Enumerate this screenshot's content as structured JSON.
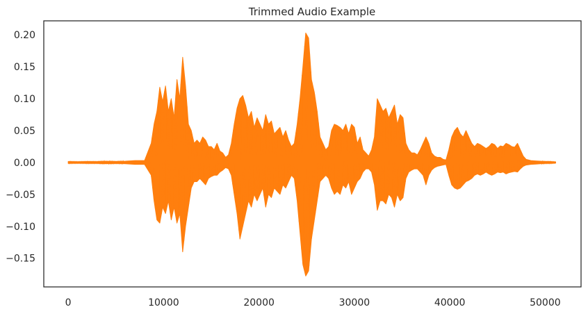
{
  "chart_data": {
    "type": "line",
    "title": "Trimmed Audio Example",
    "xlabel": "",
    "ylabel": "",
    "xlim": [
      -2560,
      53760
    ],
    "ylim": [
      -0.195,
      0.222
    ],
    "x_ticks": [
      0,
      10000,
      20000,
      30000,
      40000,
      50000
    ],
    "x_tick_labels": [
      "0",
      "10000",
      "20000",
      "30000",
      "40000",
      "50000"
    ],
    "y_ticks": [
      -0.15,
      -0.1,
      -0.05,
      0.0,
      0.05,
      0.1,
      0.15,
      0.2
    ],
    "y_tick_labels": [
      "−0.15",
      "−0.10",
      "−0.05",
      "0.00",
      "0.05",
      "0.10",
      "0.15",
      "0.20"
    ],
    "grid": false,
    "legend": "none",
    "series": [
      {
        "color": "#ff7f0e",
        "representation": "min-max envelope per sample window",
        "x": [
          0,
          1000,
          2000,
          3000,
          4000,
          5000,
          6000,
          7000,
          8000,
          8700,
          9000,
          9300,
          9600,
          9900,
          10200,
          10500,
          10800,
          11100,
          11400,
          11700,
          12000,
          12300,
          12600,
          12900,
          13200,
          13500,
          13800,
          14100,
          14400,
          14700,
          15000,
          15300,
          15600,
          15900,
          16200,
          16500,
          16800,
          17100,
          17400,
          17700,
          18000,
          18300,
          18600,
          18900,
          19200,
          19500,
          19800,
          20100,
          20400,
          20700,
          21000,
          21300,
          21600,
          21900,
          22200,
          22500,
          22800,
          23100,
          23400,
          23700,
          24000,
          24300,
          24600,
          24900,
          25200,
          25500,
          25800,
          26100,
          26400,
          26700,
          27000,
          27300,
          27600,
          27900,
          28200,
          28500,
          28800,
          29100,
          29400,
          29700,
          30000,
          30300,
          30600,
          30900,
          31200,
          31500,
          31800,
          32100,
          32400,
          32700,
          33000,
          33300,
          33600,
          33900,
          34200,
          34500,
          34800,
          35100,
          35400,
          35700,
          36000,
          36300,
          36600,
          36900,
          37200,
          37500,
          37800,
          38100,
          38400,
          38700,
          39000,
          39300,
          39600,
          39900,
          40200,
          40500,
          40800,
          41100,
          41400,
          41700,
          42000,
          42300,
          42600,
          42900,
          43200,
          43500,
          43800,
          44100,
          44400,
          44700,
          45000,
          45300,
          45600,
          45900,
          46200,
          46500,
          46800,
          47100,
          47400,
          47700,
          48000,
          48500,
          49000,
          49500,
          50000,
          50500,
          51100
        ],
        "y_max": [
          0.0015,
          0.0012,
          0.0015,
          0.0014,
          0.002,
          0.0015,
          0.002,
          0.003,
          0.003,
          0.03,
          0.06,
          0.08,
          0.118,
          0.095,
          0.12,
          0.08,
          0.1,
          0.07,
          0.13,
          0.1,
          0.165,
          0.12,
          0.06,
          0.05,
          0.03,
          0.035,
          0.03,
          0.04,
          0.035,
          0.025,
          0.025,
          0.02,
          0.03,
          0.018,
          0.015,
          0.008,
          0.012,
          0.03,
          0.06,
          0.085,
          0.1,
          0.105,
          0.09,
          0.07,
          0.08,
          0.055,
          0.07,
          0.06,
          0.05,
          0.075,
          0.06,
          0.065,
          0.045,
          0.05,
          0.055,
          0.04,
          0.05,
          0.035,
          0.025,
          0.03,
          0.06,
          0.1,
          0.15,
          0.203,
          0.195,
          0.13,
          0.11,
          0.08,
          0.04,
          0.03,
          0.02,
          0.025,
          0.05,
          0.06,
          0.058,
          0.055,
          0.05,
          0.06,
          0.045,
          0.06,
          0.055,
          0.03,
          0.04,
          0.02,
          0.015,
          0.01,
          0.02,
          0.04,
          0.1,
          0.09,
          0.08,
          0.085,
          0.07,
          0.08,
          0.09,
          0.06,
          0.075,
          0.07,
          0.03,
          0.02,
          0.015,
          0.015,
          0.012,
          0.02,
          0.03,
          0.04,
          0.03,
          0.015,
          0.01,
          0.008,
          0.008,
          0.005,
          0.004,
          0.02,
          0.04,
          0.05,
          0.055,
          0.045,
          0.04,
          0.05,
          0.04,
          0.03,
          0.025,
          0.03,
          0.028,
          0.025,
          0.022,
          0.025,
          0.03,
          0.028,
          0.022,
          0.026,
          0.025,
          0.03,
          0.028,
          0.025,
          0.024,
          0.03,
          0.02,
          0.01,
          0.005,
          0.003,
          0.0025,
          0.002,
          0.0015,
          0.0015,
          0.001
        ],
        "y_min": [
          -0.0015,
          -0.0012,
          -0.0015,
          -0.0014,
          -0.002,
          -0.0015,
          -0.002,
          -0.003,
          -0.003,
          -0.02,
          -0.06,
          -0.09,
          -0.095,
          -0.07,
          -0.08,
          -0.06,
          -0.09,
          -0.07,
          -0.095,
          -0.08,
          -0.14,
          -0.1,
          -0.07,
          -0.04,
          -0.03,
          -0.03,
          -0.025,
          -0.03,
          -0.035,
          -0.025,
          -0.022,
          -0.02,
          -0.02,
          -0.015,
          -0.012,
          -0.008,
          -0.01,
          -0.02,
          -0.05,
          -0.08,
          -0.12,
          -0.1,
          -0.08,
          -0.06,
          -0.07,
          -0.05,
          -0.06,
          -0.05,
          -0.04,
          -0.07,
          -0.05,
          -0.055,
          -0.04,
          -0.045,
          -0.05,
          -0.035,
          -0.04,
          -0.03,
          -0.02,
          -0.025,
          -0.06,
          -0.11,
          -0.16,
          -0.178,
          -0.17,
          -0.12,
          -0.09,
          -0.06,
          -0.03,
          -0.025,
          -0.02,
          -0.025,
          -0.04,
          -0.05,
          -0.045,
          -0.05,
          -0.035,
          -0.04,
          -0.03,
          -0.05,
          -0.04,
          -0.03,
          -0.025,
          -0.015,
          -0.01,
          -0.01,
          -0.015,
          -0.035,
          -0.075,
          -0.06,
          -0.06,
          -0.065,
          -0.05,
          -0.055,
          -0.07,
          -0.05,
          -0.06,
          -0.055,
          -0.025,
          -0.015,
          -0.012,
          -0.01,
          -0.01,
          -0.015,
          -0.02,
          -0.035,
          -0.02,
          -0.012,
          -0.008,
          -0.006,
          -0.005,
          -0.004,
          -0.003,
          -0.02,
          -0.035,
          -0.04,
          -0.042,
          -0.04,
          -0.035,
          -0.03,
          -0.028,
          -0.025,
          -0.02,
          -0.018,
          -0.02,
          -0.018,
          -0.015,
          -0.018,
          -0.02,
          -0.018,
          -0.015,
          -0.016,
          -0.015,
          -0.018,
          -0.016,
          -0.015,
          -0.014,
          -0.015,
          -0.01,
          -0.006,
          -0.004,
          -0.003,
          -0.0025,
          -0.002,
          -0.0015,
          -0.0015,
          -0.001
        ]
      }
    ]
  }
}
